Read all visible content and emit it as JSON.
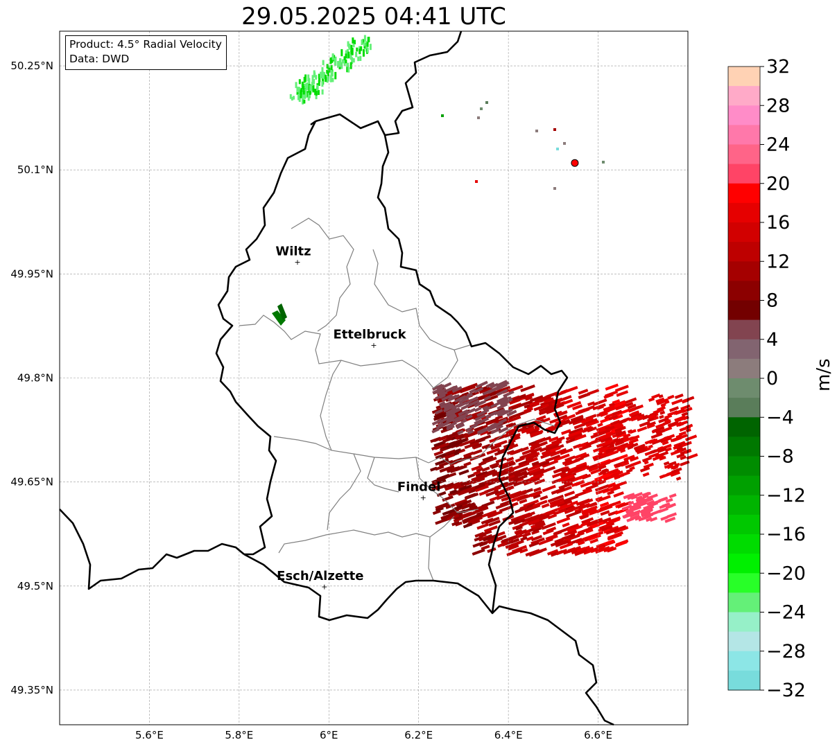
{
  "title": "29.05.2025 04:41 UTC",
  "info": {
    "product": "Product: 4.5° Radial Velocity",
    "source": "Data: DWD"
  },
  "map": {
    "lon_min": 5.4,
    "lon_max": 6.8,
    "lat_min": 49.3,
    "lat_max": 50.3,
    "lon_ticks": [
      {
        "value": 5.6,
        "label": "5.6°E"
      },
      {
        "value": 5.8,
        "label": "5.8°E"
      },
      {
        "value": 6.0,
        "label": "6°E"
      },
      {
        "value": 6.2,
        "label": "6.2°E"
      },
      {
        "value": 6.4,
        "label": "6.4°E"
      },
      {
        "value": 6.6,
        "label": "6.6°E"
      }
    ],
    "lat_ticks": [
      {
        "value": 50.25,
        "label": "50.25°N"
      },
      {
        "value": 50.1,
        "label": "50.1°N"
      },
      {
        "value": 49.95,
        "label": "49.95°N"
      },
      {
        "value": 49.8,
        "label": "49.8°N"
      },
      {
        "value": 49.65,
        "label": "49.65°N"
      },
      {
        "value": 49.5,
        "label": "49.5°N"
      },
      {
        "value": 49.35,
        "label": "49.35°N"
      }
    ],
    "cities": [
      {
        "name": "Wiltz",
        "lon": 5.93,
        "lat": 49.967
      },
      {
        "name": "Ettelbruck",
        "lon": 6.1,
        "lat": 49.847
      },
      {
        "name": "Findel",
        "lon": 6.21,
        "lat": 49.627
      },
      {
        "name": "Esch/Alzette",
        "lon": 5.99,
        "lat": 49.499
      }
    ],
    "radar_site": {
      "lon": 6.548,
      "lat": 50.11
    }
  },
  "colorbar": {
    "unit": "m/s",
    "min": -32,
    "max": 32,
    "tick_labels": [
      "32",
      "28",
      "24",
      "20",
      "16",
      "12",
      "8",
      "4",
      "0",
      "−4",
      "−8",
      "−12",
      "−16",
      "−20",
      "−24",
      "−28",
      "−32"
    ],
    "colors_top_to_bottom": [
      "#ffd2b4",
      "#ffaac8",
      "#ff8cc8",
      "#ff78aa",
      "#ff6488",
      "#ff4466",
      "#ff0000",
      "#e60000",
      "#d20000",
      "#be0000",
      "#a50000",
      "#8c0000",
      "#730000",
      "#824450",
      "#826470",
      "#8c7c7c",
      "#6e8c6e",
      "#5a7d5a",
      "#006400",
      "#007800",
      "#008c00",
      "#00a000",
      "#00b400",
      "#00c800",
      "#00dc00",
      "#00f000",
      "#28ff28",
      "#64f078",
      "#96f0c8",
      "#b4e6e6",
      "#8ce6e6",
      "#78dcdc"
    ]
  }
}
